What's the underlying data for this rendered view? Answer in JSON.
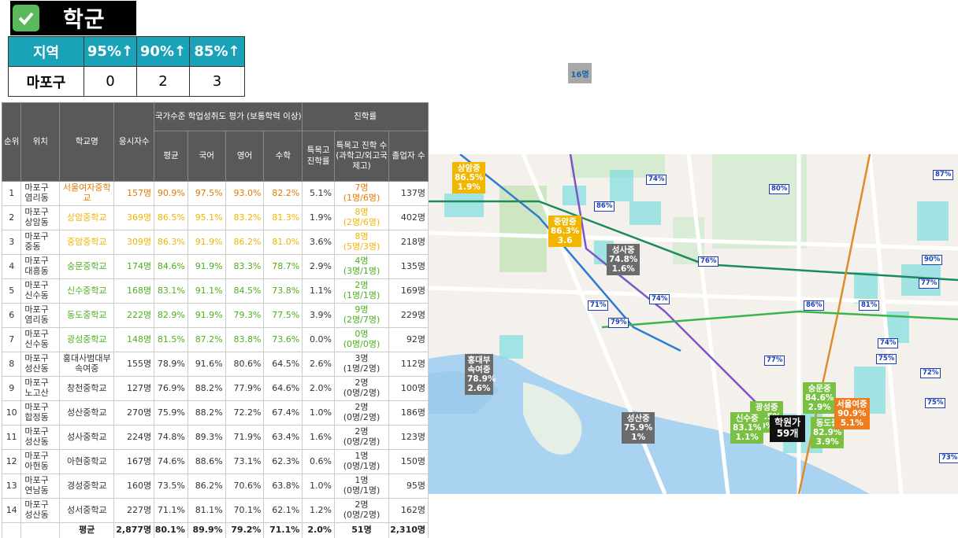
{
  "header": {
    "title": "학군",
    "check_icon": "checkbox-check-icon"
  },
  "summary": {
    "headers": [
      "지역",
      "95%↑",
      "90%↑",
      "85%↑"
    ],
    "row": [
      "마포구",
      "0",
      "2",
      "3"
    ]
  },
  "table": {
    "col_rank": "순위",
    "col_loc": "위치",
    "col_school": "학교명",
    "col_count": "응시자수",
    "group_eval": "국가수준 학업성취도 평가 (보통학력 이상)",
    "group_adv": "진학률",
    "col_avg": "평균",
    "col_kor": "국어",
    "col_eng": "영어",
    "col_math": "수학",
    "col_special_rate": "특목고 진학률",
    "col_special_cnt": "특목고 진학 수 (과학고/외고국제고)",
    "col_grad": "졸업자 수",
    "rows": [
      {
        "rank": "1",
        "loc": "마포구 염리동",
        "school": "서울여자중학교",
        "count": "157명",
        "avg": "90.9%",
        "kor": "97.5%",
        "eng": "93.0%",
        "math": "82.2%",
        "rate": "5.1%",
        "sc": "7명",
        "sc2": "(1명/6명)",
        "grad": "137명"
      },
      {
        "rank": "2",
        "loc": "마포구 상암동",
        "school": "상암중학교",
        "count": "369명",
        "avg": "86.5%",
        "kor": "95.1%",
        "eng": "83.2%",
        "math": "81.3%",
        "rate": "1.9%",
        "sc": "8명",
        "sc2": "(2명/6명)",
        "grad": "402명"
      },
      {
        "rank": "3",
        "loc": "마포구 중동",
        "school": "중암중학교",
        "count": "309명",
        "avg": "86.3%",
        "kor": "91.9%",
        "eng": "86.2%",
        "math": "81.0%",
        "rate": "3.6%",
        "sc": "8명",
        "sc2": "(5명/3명)",
        "grad": "218명"
      },
      {
        "rank": "4",
        "loc": "마포구 대흥동",
        "school": "숭문중학교",
        "count": "174명",
        "avg": "84.6%",
        "kor": "91.9%",
        "eng": "83.3%",
        "math": "78.7%",
        "rate": "2.9%",
        "sc": "4명",
        "sc2": "(3명/1명)",
        "grad": "135명"
      },
      {
        "rank": "5",
        "loc": "마포구 신수동",
        "school": "신수중학교",
        "count": "168명",
        "avg": "83.1%",
        "kor": "91.1%",
        "eng": "84.5%",
        "math": "73.8%",
        "rate": "1.1%",
        "sc": "2명",
        "sc2": "(1명/1명)",
        "grad": "169명"
      },
      {
        "rank": "6",
        "loc": "마포구 염리동",
        "school": "동도중학교",
        "count": "222명",
        "avg": "82.9%",
        "kor": "91.9%",
        "eng": "79.3%",
        "math": "77.5%",
        "rate": "3.9%",
        "sc": "9명",
        "sc2": "(2명/7명)",
        "grad": "229명"
      },
      {
        "rank": "7",
        "loc": "마포구 신수동",
        "school": "광성중학교",
        "count": "148명",
        "avg": "81.5%",
        "kor": "87.2%",
        "eng": "83.8%",
        "math": "73.6%",
        "rate": "0.0%",
        "sc": "0명",
        "sc2": "(0명/0명)",
        "grad": "92명"
      },
      {
        "rank": "8",
        "loc": "마포구 성산동",
        "school": "홍대사범대부속여중",
        "count": "155명",
        "avg": "78.9%",
        "kor": "91.6%",
        "eng": "80.6%",
        "math": "64.5%",
        "rate": "2.6%",
        "sc": "3명",
        "sc2": "(1명/2명)",
        "grad": "112명"
      },
      {
        "rank": "9",
        "loc": "마포구 노고산",
        "school": "창천중학교",
        "count": "127명",
        "avg": "76.9%",
        "kor": "88.2%",
        "eng": "77.9%",
        "math": "64.6%",
        "rate": "2.0%",
        "sc": "2명",
        "sc2": "(0명/2명)",
        "grad": "100명"
      },
      {
        "rank": "10",
        "loc": "마포구 합정동",
        "school": "성산중학교",
        "count": "270명",
        "avg": "75.9%",
        "kor": "88.2%",
        "eng": "72.2%",
        "math": "67.4%",
        "rate": "1.0%",
        "sc": "2명",
        "sc2": "(0명/2명)",
        "grad": "186명"
      },
      {
        "rank": "11",
        "loc": "마포구 성산동",
        "school": "성사중학교",
        "count": "224명",
        "avg": "74.8%",
        "kor": "89.3%",
        "eng": "71.9%",
        "math": "63.4%",
        "rate": "1.6%",
        "sc": "2명",
        "sc2": "(0명/2명)",
        "grad": "123명"
      },
      {
        "rank": "12",
        "loc": "마포구 아현동",
        "school": "아현중학교",
        "count": "167명",
        "avg": "74.6%",
        "kor": "88.6%",
        "eng": "73.1%",
        "math": "62.3%",
        "rate": "0.6%",
        "sc": "1명",
        "sc2": "(0명/1명)",
        "grad": "150명"
      },
      {
        "rank": "13",
        "loc": "마포구 연남동",
        "school": "경성중학교",
        "count": "160명",
        "avg": "73.5%",
        "kor": "86.2%",
        "eng": "70.6%",
        "math": "63.8%",
        "rate": "1.0%",
        "sc": "1명",
        "sc2": "(0명/1명)",
        "grad": "95명"
      },
      {
        "rank": "14",
        "loc": "마포구 성산동",
        "school": "성서중학교",
        "count": "227명",
        "avg": "71.1%",
        "kor": "81.1%",
        "eng": "70.1%",
        "math": "62.1%",
        "rate": "1.2%",
        "sc": "2명",
        "sc2": "(0명/2명)",
        "grad": "162명"
      }
    ],
    "footer": {
      "label": "평균",
      "count": "2,877명",
      "avg": "80.1%",
      "kor": "89.9%",
      "eng": "79.2%",
      "math": "71.1%",
      "rate": "2.0%",
      "sc": "51명",
      "grad": "2,310명"
    }
  },
  "map": {
    "top_label": "16명",
    "schools": [
      {
        "name": "상암중",
        "v1": "86.5%",
        "v2": "1.9%"
      },
      {
        "name": "중암중",
        "v1": "86.3%",
        "v2": "3.6"
      },
      {
        "name": "성사중",
        "v1": "74.8%",
        "v2": "1.6%"
      },
      {
        "name": "홍대부속여중",
        "v1": "78.9%",
        "v2": "2.6%"
      },
      {
        "name": "성산중",
        "v1": "75.9%",
        "v2": "1%"
      },
      {
        "name": "광성중",
        "v1": "81.5%",
        "v2": "0%"
      },
      {
        "name": "신수중",
        "v1": "83.1%",
        "v2": "1.1%"
      },
      {
        "name": "동도중",
        "v1": "82.9%",
        "v2": "3.9%"
      },
      {
        "name": "숭문중",
        "v1": "84.6%",
        "v2": "2.9%"
      },
      {
        "name": "서울여중",
        "v1": "90.9%",
        "v2": "5.1%"
      }
    ],
    "academy": {
      "name": "학원가",
      "count": "59개"
    },
    "flags": [
      "74%",
      "80%",
      "86%",
      "76%",
      "71%",
      "74%",
      "79%",
      "86%",
      "81%",
      "90%",
      "77%",
      "74%",
      "75%",
      "72%",
      "75%",
      "73%",
      "87%",
      "77%"
    ]
  }
}
